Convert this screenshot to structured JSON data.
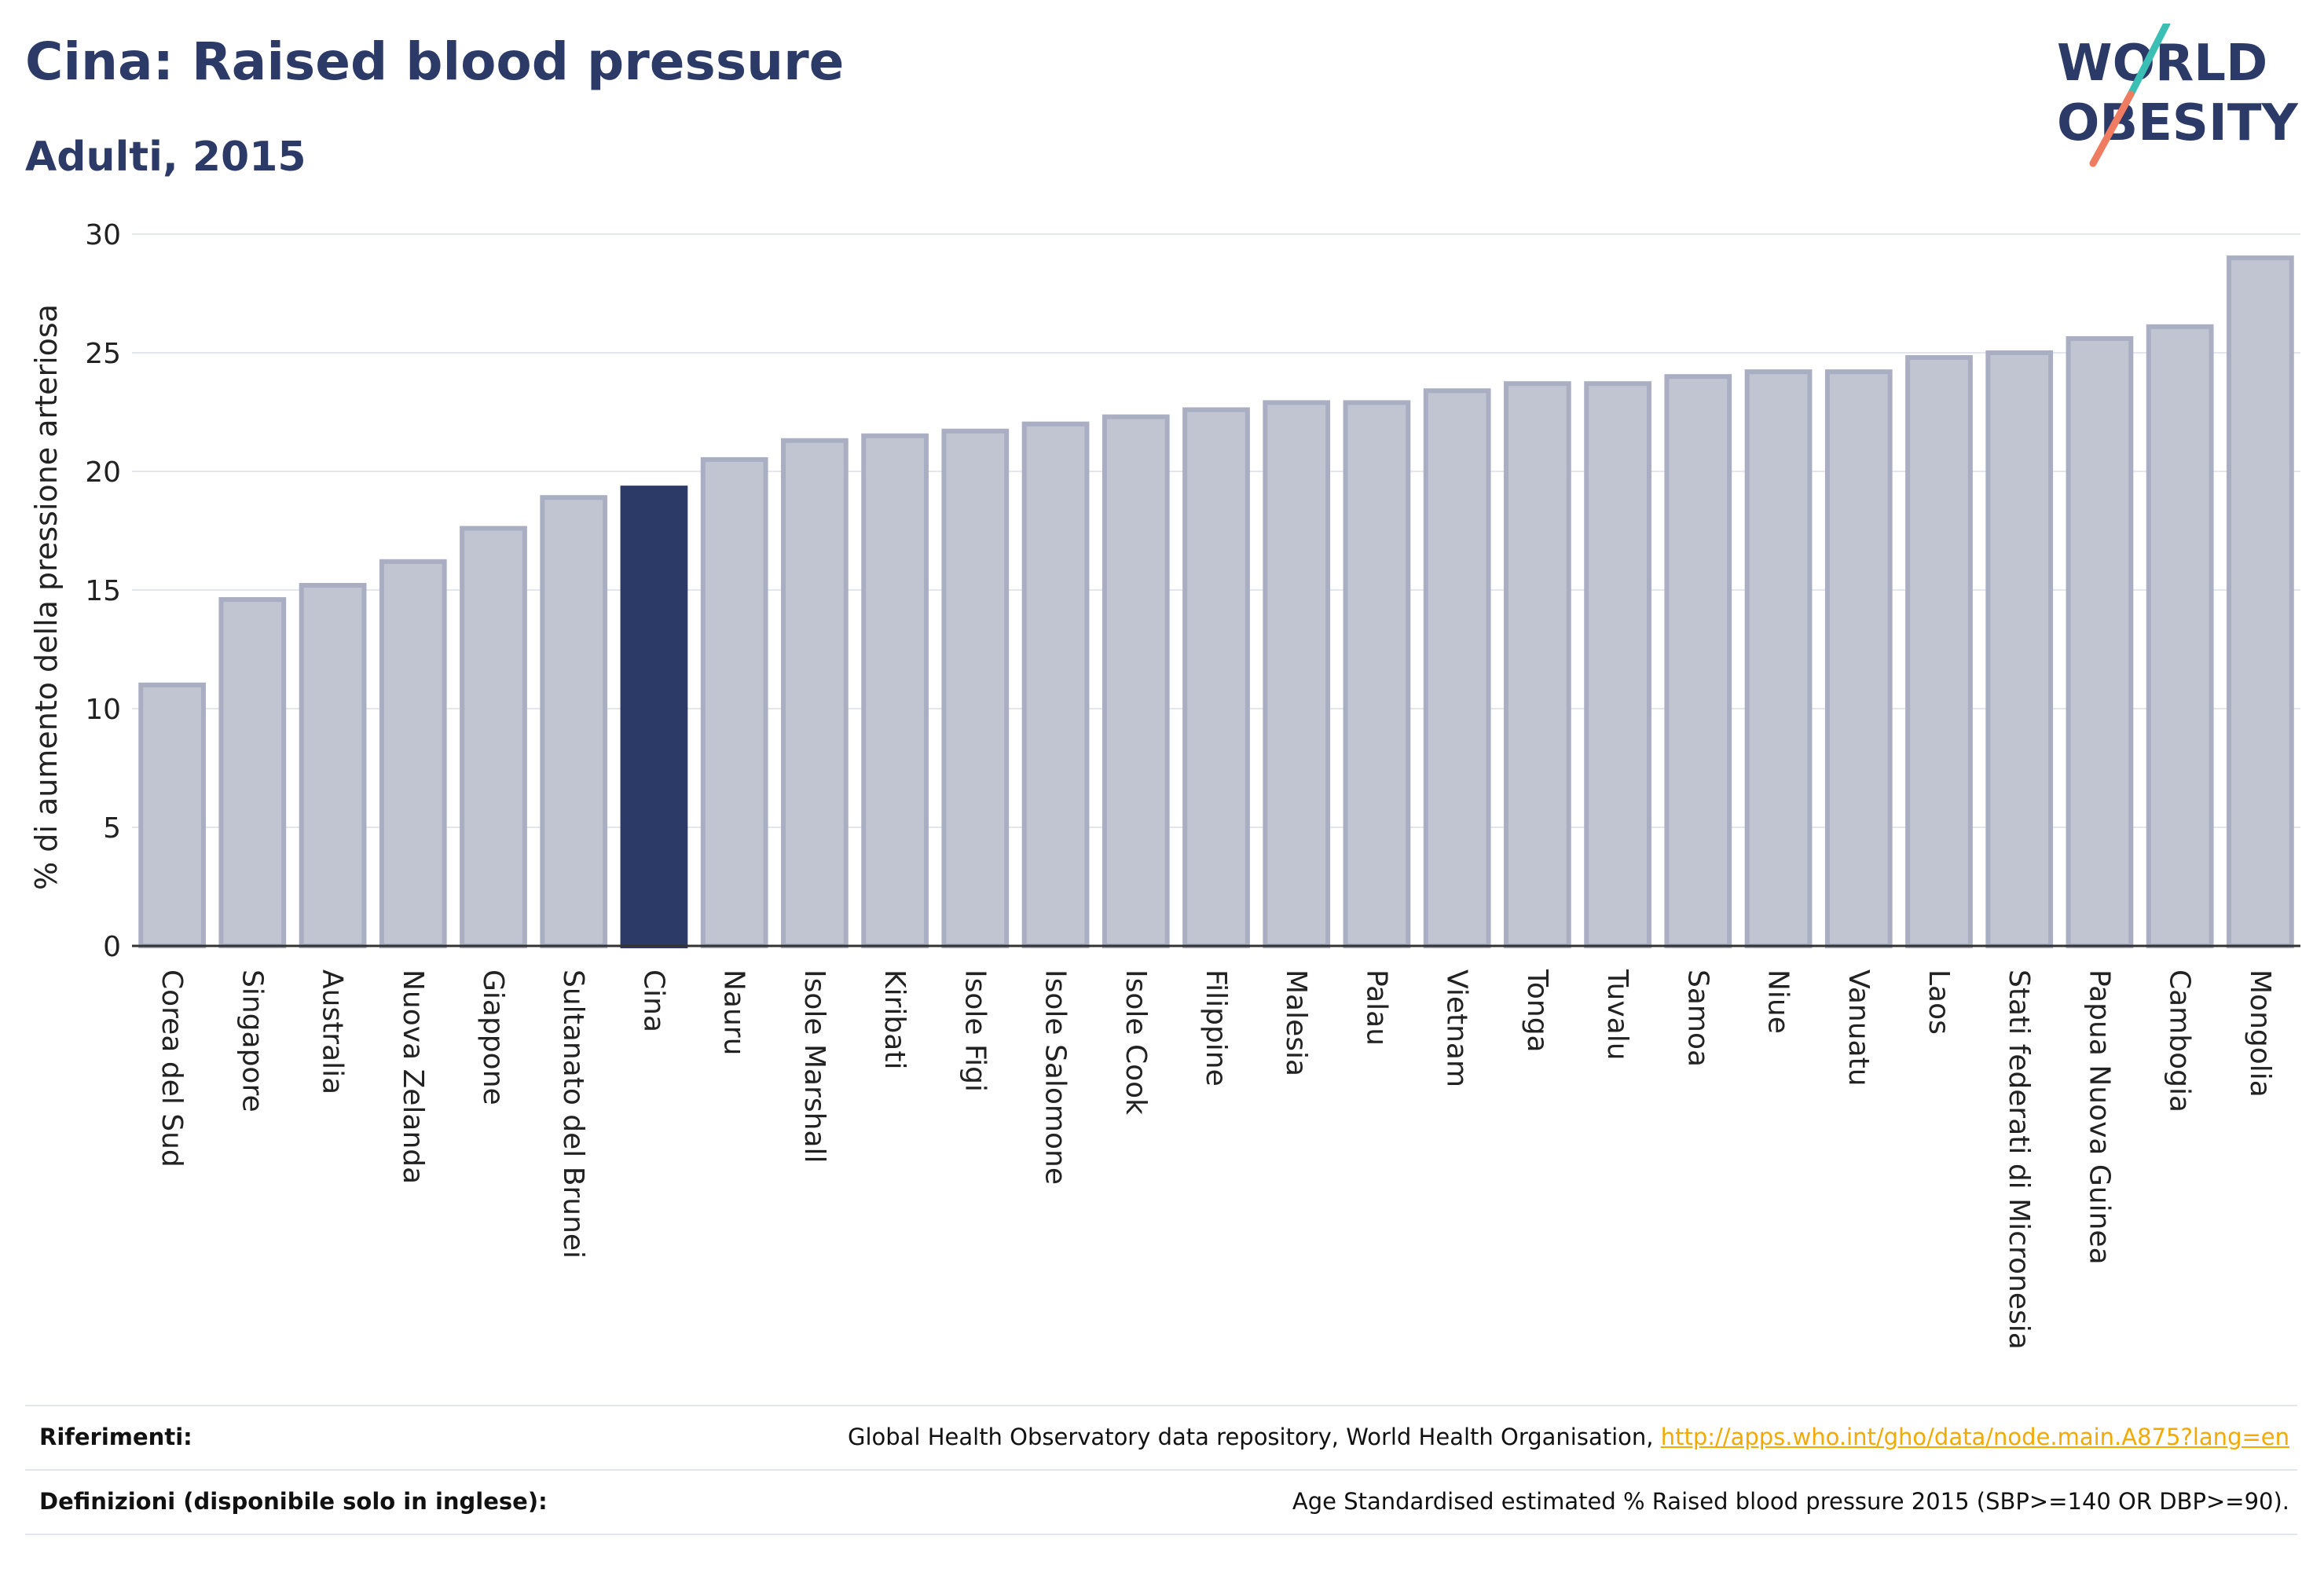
{
  "header": {
    "title": "Cina: Raised blood pressure",
    "subtitle": "Adulti, 2015"
  },
  "logo": {
    "line1": "WORLD",
    "line2": "OBESITY",
    "colors": {
      "text": "#2b3a67",
      "slash_teal": "#3bbfb5",
      "slash_coral": "#ef7b60"
    }
  },
  "colors": {
    "bar_default": "#c1c4d1",
    "bar_default_border": "#a9aec2",
    "bar_highlight": "#2b3a67",
    "axis_text": "#222222",
    "grid": "#e4e6ee",
    "link": "#f2a900"
  },
  "chart_data": {
    "type": "bar",
    "title": "Cina: Raised blood pressure",
    "subtitle": "Adulti, 2015",
    "xlabel": "",
    "ylabel": "% di aumento della pressione arteriosa",
    "ylim": [
      0,
      30
    ],
    "yticks": [
      0,
      5,
      10,
      15,
      20,
      25,
      30
    ],
    "grid": true,
    "highlight": "Cina",
    "categories": [
      "Corea del Sud",
      "Singapore",
      "Australia",
      "Nuova Zelanda",
      "Giappone",
      "Sultanato del Brunei",
      "Cina",
      "Nauru",
      "Isole Marshall",
      "Kiribati",
      "Isole Figi",
      "Isole Salomone",
      "Isole Cook",
      "Filippine",
      "Malesia",
      "Palau",
      "Vietnam",
      "Tonga",
      "Tuvalu",
      "Samoa",
      "Niue",
      "Vanuatu",
      "Laos",
      "Stati federati di Micronesia",
      "Papua Nuova Guinea",
      "Cambogia",
      "Mongolia"
    ],
    "values": [
      11.0,
      14.6,
      15.2,
      16.2,
      17.6,
      18.9,
      19.3,
      20.5,
      21.3,
      21.5,
      21.7,
      22.0,
      22.3,
      22.6,
      22.9,
      22.9,
      23.4,
      23.7,
      23.7,
      24.0,
      24.2,
      24.2,
      24.8,
      25.0,
      25.6,
      26.1,
      29.0
    ]
  },
  "references": {
    "rows": [
      {
        "label": "Riferimenti:",
        "text": "Global Health Observatory data repository, World Health Organisation, ",
        "link": "http://apps.who.int/gho/data/node.main.A875?lang=en"
      },
      {
        "label": "Definizioni (disponibile solo in inglese):",
        "text": "Age Standardised estimated % Raised blood pressure 2015 (SBP>=140 OR DBP>=90).",
        "link": ""
      }
    ]
  }
}
